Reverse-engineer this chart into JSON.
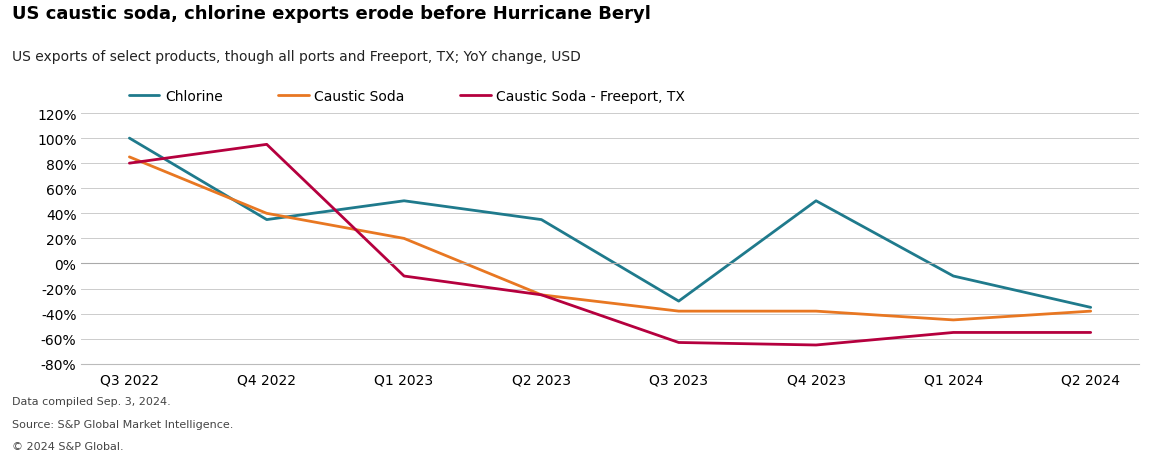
{
  "title": "US caustic soda, chlorine exports erode before Hurricane Beryl",
  "subtitle": "US exports of select products, though all ports and Freeport, TX; YoY change, USD",
  "footnote1": "Data compiled Sep. 3, 2024.",
  "footnote2": "Source: S&P Global Market Intelligence.",
  "footnote3": "© 2024 S&P Global.",
  "x_labels": [
    "Q3 2022",
    "Q4 2022",
    "Q1 2023",
    "Q2 2023",
    "Q3 2023",
    "Q4 2023",
    "Q1 2024",
    "Q2 2024"
  ],
  "series": [
    {
      "name": "Chlorine",
      "color": "#1f7a8c",
      "values": [
        1.0,
        0.35,
        0.5,
        0.35,
        -0.3,
        0.5,
        -0.1,
        -0.35
      ]
    },
    {
      "name": "Caustic Soda",
      "color": "#e87722",
      "values": [
        0.85,
        0.4,
        0.2,
        -0.25,
        -0.38,
        -0.38,
        -0.45,
        -0.38
      ]
    },
    {
      "name": "Caustic Soda - Freeport, TX",
      "color": "#b5003e",
      "values": [
        0.8,
        0.95,
        -0.1,
        -0.25,
        -0.63,
        -0.65,
        -0.55,
        -0.55
      ]
    }
  ],
  "ylim": [
    -0.8,
    1.2
  ],
  "yticks": [
    -0.8,
    -0.6,
    -0.4,
    -0.2,
    0.0,
    0.2,
    0.4,
    0.6,
    0.8,
    1.0,
    1.2
  ],
  "background_color": "#ffffff",
  "grid_color": "#cccccc",
  "title_fontsize": 13,
  "subtitle_fontsize": 10,
  "legend_fontsize": 10,
  "tick_fontsize": 10,
  "footnote_fontsize": 8
}
